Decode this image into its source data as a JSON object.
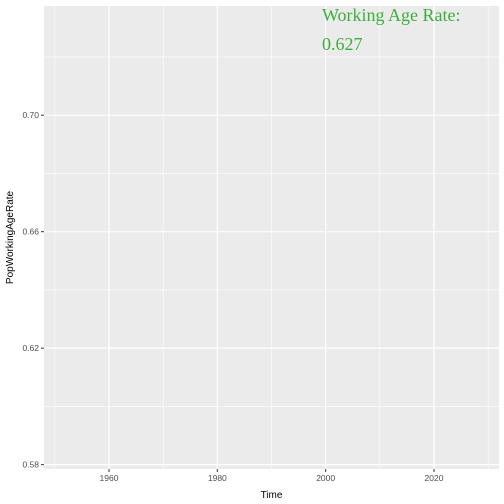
{
  "chart_data": {
    "type": "line",
    "title": "",
    "xlabel": "Time",
    "ylabel": "PopWorkingAgeRate",
    "xlim": [
      1948,
      2032
    ],
    "ylim": [
      0.5785,
      0.7375
    ],
    "x_ticks": [
      1960,
      1980,
      2000,
      2020
    ],
    "x_tick_labels": [
      "1960",
      "1980",
      "2000",
      "2020"
    ],
    "y_ticks": [
      0.58,
      0.62,
      0.66,
      0.7
    ],
    "y_tick_labels": [
      "0.58",
      "0.62",
      "0.66",
      "0.70"
    ],
    "series": [],
    "grid": true,
    "background_color": "#EBEBEB",
    "grid_color": "#FFFFFF",
    "annotation": {
      "line1": "Working Age Rate:",
      "line2": "0.627",
      "color": "#3DAE3D"
    }
  }
}
